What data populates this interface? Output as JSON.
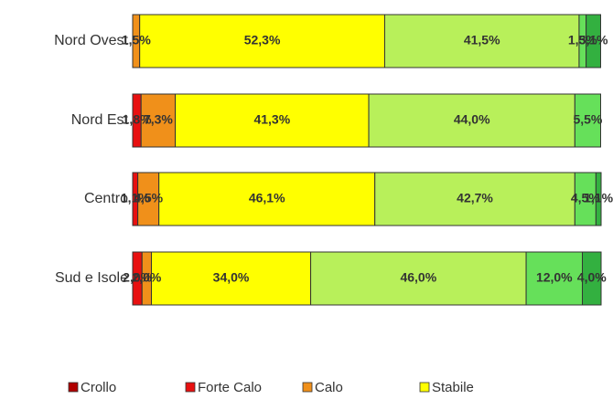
{
  "chart_data": {
    "type": "stacked_bar_horizontal",
    "categories": [
      "Nord Ovest",
      "Nord Est",
      "Centro",
      "Sud e Isole"
    ],
    "xlim": [
      0,
      100
    ],
    "legend": "bottom",
    "series": [
      {
        "name": "Crollo",
        "color": "#b00000",
        "values": [
          null,
          null,
          null,
          null
        ],
        "value_labels": [
          null,
          null,
          null,
          null
        ]
      },
      {
        "name": "Forte Calo",
        "color": "#e81010",
        "values": [
          null,
          1.8,
          1.1,
          2.0
        ],
        "value_labels": [
          null,
          "1,8%",
          "1,1%",
          "2,0%"
        ]
      },
      {
        "name": "Calo",
        "color": "#f0901a",
        "values": [
          1.5,
          7.3,
          4.5,
          2.0
        ],
        "value_labels": [
          "1,5%",
          "7,3%",
          "4,5%",
          "2,0%"
        ]
      },
      {
        "name": "Stabile",
        "color": "#ffff00",
        "values": [
          52.3,
          41.3,
          46.1,
          34.0
        ],
        "value_labels": [
          "52,3%",
          "41,3%",
          "46,1%",
          "34,0%"
        ]
      },
      {
        "name": null,
        "color": "#b8f05a",
        "values": [
          41.5,
          44.0,
          42.7,
          46.0
        ],
        "value_labels": [
          "41,5%",
          "44,0%",
          "42,7%",
          "46,0%"
        ]
      },
      {
        "name": null,
        "color": "#66e05a",
        "values": [
          1.5,
          5.5,
          4.5,
          12.0
        ],
        "value_labels": [
          "1,5%",
          "5,5%",
          "4,5%",
          "12,0%"
        ]
      },
      {
        "name": null,
        "color": "#33b040",
        "values": [
          3.1,
          null,
          1.1,
          4.0
        ],
        "value_labels": [
          "3,1%",
          null,
          "1,1%",
          "4,0%"
        ]
      }
    ]
  }
}
